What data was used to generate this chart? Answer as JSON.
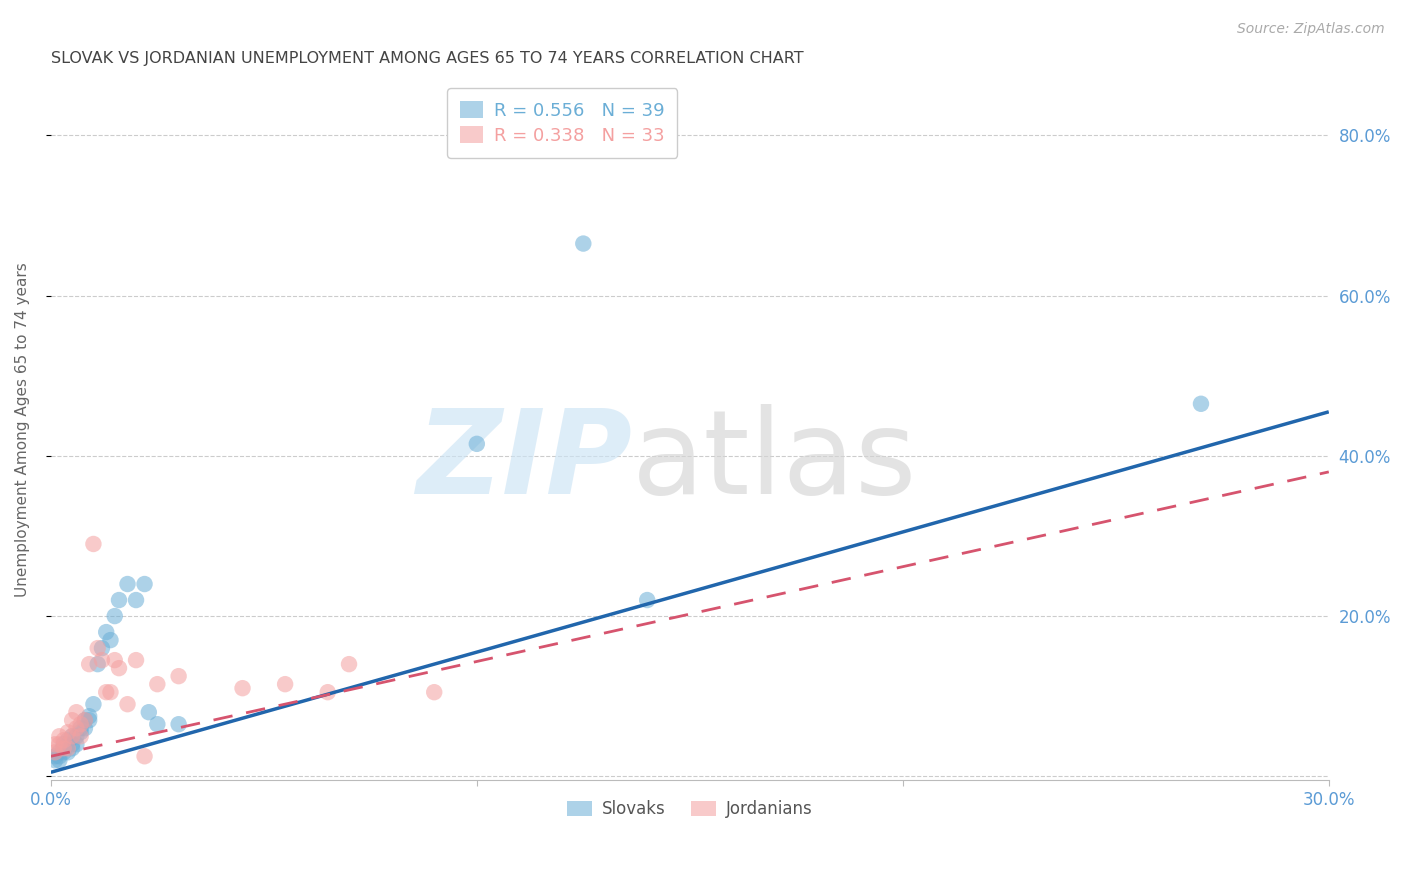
{
  "title": "SLOVAK VS JORDANIAN UNEMPLOYMENT AMONG AGES 65 TO 74 YEARS CORRELATION CHART",
  "source": "Source: ZipAtlas.com",
  "ylabel": "Unemployment Among Ages 65 to 74 years",
  "xlim": [
    0.0,
    0.3
  ],
  "ylim": [
    -0.005,
    0.87
  ],
  "ytick_positions": [
    0.0,
    0.2,
    0.4,
    0.6,
    0.8
  ],
  "xtick_positions": [
    0.0,
    0.1,
    0.2,
    0.3
  ],
  "xtick_labels": [
    "0.0%",
    "",
    "",
    "30.0%"
  ],
  "right_ytick_labels": [
    "",
    "20.0%",
    "40.0%",
    "60.0%",
    "80.0%"
  ],
  "slovak_R": 0.556,
  "slovak_N": 39,
  "jordan_R": 0.338,
  "jordan_N": 33,
  "blue_color": "#6baed6",
  "pink_color": "#f4a0a0",
  "blue_line_color": "#2166ac",
  "pink_line_color": "#d6546e",
  "axis_color": "#5b9bd5",
  "grid_color": "#cccccc",
  "title_color": "#444444",
  "source_color": "#aaaaaa",
  "slovak_x": [
    0.001,
    0.001,
    0.002,
    0.002,
    0.002,
    0.003,
    0.003,
    0.003,
    0.004,
    0.004,
    0.004,
    0.005,
    0.005,
    0.005,
    0.006,
    0.006,
    0.007,
    0.007,
    0.008,
    0.008,
    0.009,
    0.009,
    0.01,
    0.011,
    0.012,
    0.013,
    0.014,
    0.015,
    0.016,
    0.018,
    0.02,
    0.022,
    0.023,
    0.025,
    0.03,
    0.1,
    0.125,
    0.14,
    0.27
  ],
  "slovak_y": [
    0.02,
    0.025,
    0.02,
    0.03,
    0.025,
    0.03,
    0.035,
    0.04,
    0.03,
    0.04,
    0.045,
    0.035,
    0.04,
    0.05,
    0.04,
    0.05,
    0.055,
    0.06,
    0.06,
    0.07,
    0.07,
    0.075,
    0.09,
    0.14,
    0.16,
    0.18,
    0.17,
    0.2,
    0.22,
    0.24,
    0.22,
    0.24,
    0.08,
    0.065,
    0.065,
    0.415,
    0.665,
    0.22,
    0.465
  ],
  "jordan_x": [
    0.001,
    0.001,
    0.002,
    0.002,
    0.003,
    0.003,
    0.004,
    0.004,
    0.005,
    0.005,
    0.006,
    0.006,
    0.007,
    0.007,
    0.008,
    0.009,
    0.01,
    0.011,
    0.012,
    0.013,
    0.014,
    0.015,
    0.016,
    0.018,
    0.02,
    0.022,
    0.025,
    0.03,
    0.045,
    0.055,
    0.065,
    0.07,
    0.09
  ],
  "jordan_y": [
    0.03,
    0.04,
    0.04,
    0.05,
    0.035,
    0.045,
    0.035,
    0.055,
    0.05,
    0.07,
    0.06,
    0.08,
    0.05,
    0.065,
    0.07,
    0.14,
    0.29,
    0.16,
    0.145,
    0.105,
    0.105,
    0.145,
    0.135,
    0.09,
    0.145,
    0.025,
    0.115,
    0.125,
    0.11,
    0.115,
    0.105,
    0.14,
    0.105
  ],
  "slovak_reg": [
    0.0,
    0.3,
    0.005,
    0.455
  ],
  "jordan_reg": [
    0.0,
    0.3,
    0.025,
    0.38
  ]
}
